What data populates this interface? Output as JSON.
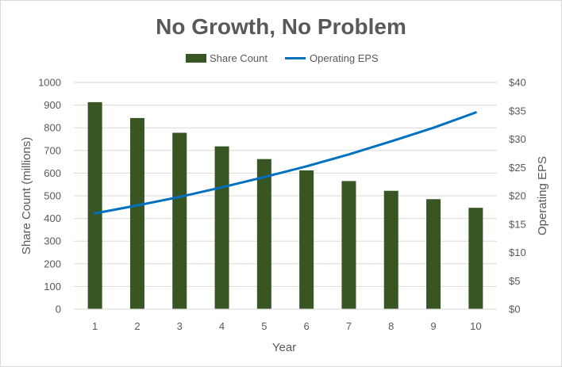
{
  "chart_data": {
    "type": "bar",
    "title": "No Growth, No Problem",
    "xlabel": "Year",
    "ylabel": "Share Count (millions)",
    "y2label": "Operating EPS",
    "categories": [
      "1",
      "2",
      "3",
      "4",
      "5",
      "6",
      "7",
      "8",
      "9",
      "10"
    ],
    "ylim": [
      0,
      1000
    ],
    "y_ticks": [
      "0",
      "100",
      "200",
      "300",
      "400",
      "500",
      "600",
      "700",
      "800",
      "900",
      "1000"
    ],
    "y2lim": [
      0,
      40
    ],
    "y2_ticks": [
      "$0",
      "$5",
      "$10",
      "$15",
      "$20",
      "$25",
      "$30",
      "$35",
      "$40"
    ],
    "legend_position": "top",
    "grid": true,
    "series": [
      {
        "name": "Share Count",
        "type": "bar",
        "axis": "left",
        "color": "#375623",
        "values": [
          913,
          843,
          778,
          718,
          662,
          612,
          565,
          522,
          485,
          447
        ]
      },
      {
        "name": "Operating EPS",
        "type": "line",
        "axis": "right",
        "color": "#0070c0",
        "values": [
          16.9,
          18.3,
          19.8,
          21.5,
          23.3,
          25.2,
          27.3,
          29.6,
          32.0,
          34.7
        ]
      }
    ]
  }
}
